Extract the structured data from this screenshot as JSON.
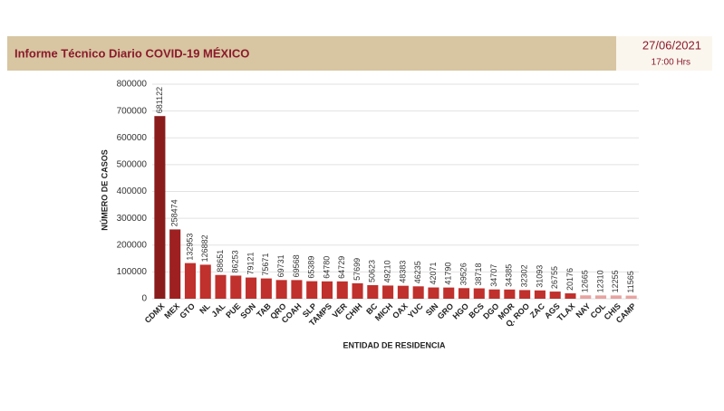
{
  "header": {
    "title": "Informe Técnico Diario COVID-19 MÉXICO",
    "date": "27/06/2021",
    "time": "17:00 Hrs"
  },
  "chart_data": {
    "type": "bar",
    "x_label": "ENTIDAD DE RESIDENCIA",
    "y_label": "NÚMERO DE CASOS",
    "categories": [
      "CDMX",
      "MEX",
      "GTO",
      "NL",
      "JAL",
      "PUE",
      "SON",
      "TAB",
      "QRO",
      "COAH",
      "SLP",
      "TAMPS",
      "VER",
      "CHIH",
      "BC",
      "MICH",
      "OAX",
      "YUC",
      "SIN",
      "GRO",
      "HGO",
      "BCS",
      "DGO",
      "MOR",
      "Q. ROO",
      "ZAC",
      "AGS",
      "TLAX",
      "NAY",
      "COL",
      "CHIS",
      "CAMP"
    ],
    "values": [
      681122,
      258474,
      132953,
      126882,
      88651,
      86253,
      79121,
      75671,
      69731,
      69568,
      65389,
      64780,
      64729,
      57699,
      50623,
      49210,
      48383,
      46235,
      42071,
      41790,
      39526,
      38718,
      34707,
      34385,
      32302,
      31093,
      26755,
      20176,
      12665,
      12310,
      12255,
      11565
    ],
    "colors": [
      "#8a1c1c",
      "#9e2020",
      "#c0302c",
      "#c0302c",
      "#c0302c",
      "#c0302c",
      "#c0302c",
      "#c0302c",
      "#c0302c",
      "#c0302c",
      "#c0302c",
      "#c0302c",
      "#c0302c",
      "#c0302c",
      "#c0302c",
      "#c0302c",
      "#c0302c",
      "#c0302c",
      "#c0302c",
      "#c0302c",
      "#c0302c",
      "#c0302c",
      "#c0302c",
      "#c0302c",
      "#c0302c",
      "#c0302c",
      "#c0302c",
      "#c0302c",
      "#e7a3a0",
      "#e7a3a0",
      "#e7a3a0",
      "#e7a3a0"
    ],
    "ylim": [
      0,
      800000
    ],
    "yticks": [
      0,
      100000,
      200000,
      300000,
      400000,
      500000,
      600000,
      700000,
      800000
    ],
    "grid": true
  }
}
